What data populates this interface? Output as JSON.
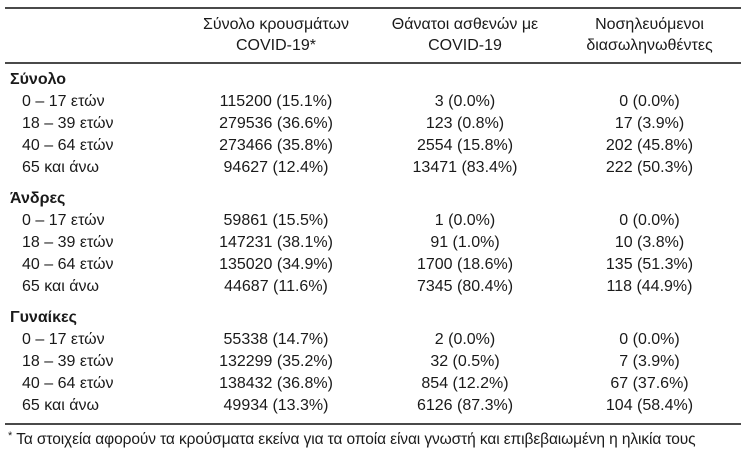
{
  "colors": {
    "text": "#1a1a1a",
    "rule": "#4a4a4a",
    "background": "#ffffff"
  },
  "table": {
    "columns": [
      {
        "line1": "Σύνολο κρουσμάτων",
        "line2": "COVID-19*"
      },
      {
        "line1": "Θάνατοι ασθενών με",
        "line2": "COVID-19"
      },
      {
        "line1": "Νοσηλευόμενοι",
        "line2": "διασωληνωθέντες"
      }
    ],
    "sections": [
      {
        "group": "Σύνολο",
        "rows": [
          {
            "label": "0 – 17 ετών",
            "cases": "115200 (15.1%)",
            "deaths": "3 (0.0%)",
            "intubated": "0 (0.0%)"
          },
          {
            "label": "18 – 39 ετών",
            "cases": "279536 (36.6%)",
            "deaths": "123 (0.8%)",
            "intubated": "17 (3.9%)"
          },
          {
            "label": "40 – 64 ετών",
            "cases": "273466 (35.8%)",
            "deaths": "2554 (15.8%)",
            "intubated": "202 (45.8%)"
          },
          {
            "label": "65 και άνω",
            "cases": "94627 (12.4%)",
            "deaths": "13471 (83.4%)",
            "intubated": "222 (50.3%)"
          }
        ]
      },
      {
        "group": "Άνδρες",
        "rows": [
          {
            "label": "0 – 17 ετών",
            "cases": "59861 (15.5%)",
            "deaths": "1 (0.0%)",
            "intubated": "0 (0.0%)"
          },
          {
            "label": "18 – 39 ετών",
            "cases": "147231 (38.1%)",
            "deaths": "91 (1.0%)",
            "intubated": "10 (3.8%)"
          },
          {
            "label": "40 – 64 ετών",
            "cases": "135020 (34.9%)",
            "deaths": "1700 (18.6%)",
            "intubated": "135 (51.3%)"
          },
          {
            "label": "65 και άνω",
            "cases": "44687 (11.6%)",
            "deaths": "7345 (80.4%)",
            "intubated": "118 (44.9%)"
          }
        ]
      },
      {
        "group": "Γυναίκες",
        "rows": [
          {
            "label": "0 – 17 ετών",
            "cases": "55338 (14.7%)",
            "deaths": "2 (0.0%)",
            "intubated": "0 (0.0%)"
          },
          {
            "label": "18 – 39 ετών",
            "cases": "132299 (35.2%)",
            "deaths": "32 (0.5%)",
            "intubated": "7 (3.9%)"
          },
          {
            "label": "40 – 64 ετών",
            "cases": "138432 (36.8%)",
            "deaths": "854 (12.2%)",
            "intubated": "67 (37.6%)"
          },
          {
            "label": "65 και άνω",
            "cases": "49934 (13.3%)",
            "deaths": "6126 (87.3%)",
            "intubated": "104 (58.4%)"
          }
        ]
      }
    ],
    "footnote_marker": "*",
    "footnote": "Τα στοιχεία αφορούν τα κρούσματα εκείνα για τα οποία είναι γνωστή και επιβεβαιωμένη η ηλικία τους"
  }
}
